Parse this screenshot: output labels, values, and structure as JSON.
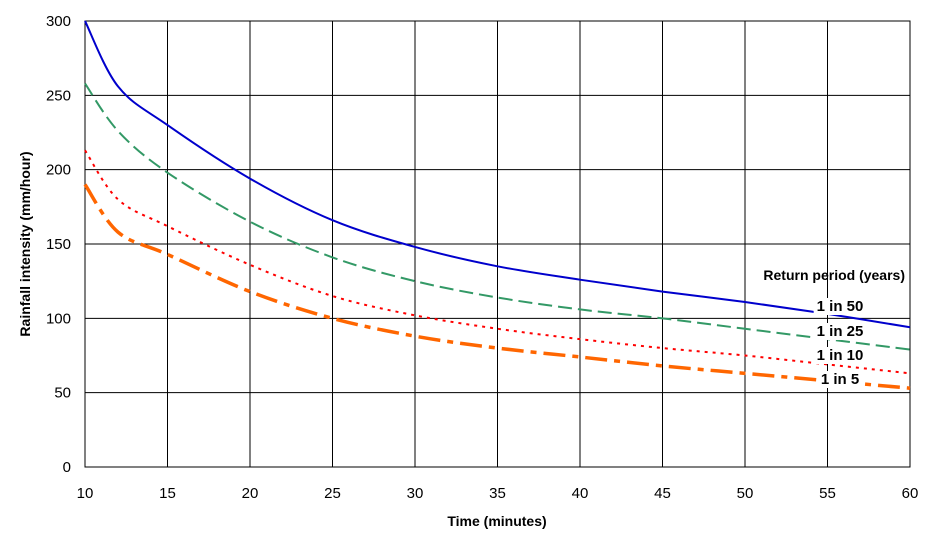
{
  "chart_data": {
    "type": "line",
    "title": "",
    "xlabel": "Time (minutes)",
    "ylabel": "Rainfall intensity (mm/hour)",
    "xlim": [
      10,
      60
    ],
    "ylim": [
      0,
      300
    ],
    "x_ticks": [
      "10",
      "15",
      "20",
      "25",
      "30",
      "35",
      "40",
      "45",
      "50",
      "55",
      "60"
    ],
    "y_ticks": [
      "0",
      "50",
      "100",
      "150",
      "200",
      "250",
      "300"
    ],
    "grid": true,
    "legend_title": "Return period (years)",
    "legend_placement": "right",
    "x": [
      10,
      12,
      15,
      20,
      25,
      30,
      35,
      40,
      45,
      50,
      55,
      60
    ],
    "series": [
      {
        "name": "1 in 50",
        "color": "#0000cc",
        "dash": "solid",
        "values": [
          300,
          256,
          230,
          194,
          166,
          148,
          135,
          126,
          118,
          111,
          103,
          94
        ]
      },
      {
        "name": "1 in 25",
        "color": "#339966",
        "dash": "dashed",
        "values": [
          258,
          226,
          198,
          165,
          141,
          125,
          114,
          106,
          100,
          93,
          86,
          79
        ]
      },
      {
        "name": "1 in 10",
        "color": "#ff0000",
        "dash": "dotted",
        "values": [
          213,
          180,
          162,
          136,
          115,
          102,
          93,
          86,
          80,
          75,
          69,
          63
        ]
      },
      {
        "name": "1 in 5",
        "color": "#ff6600",
        "dash": "dashdot",
        "values": [
          190,
          158,
          143,
          118,
          100,
          88,
          80,
          74,
          68,
          63,
          58,
          53
        ]
      }
    ]
  }
}
